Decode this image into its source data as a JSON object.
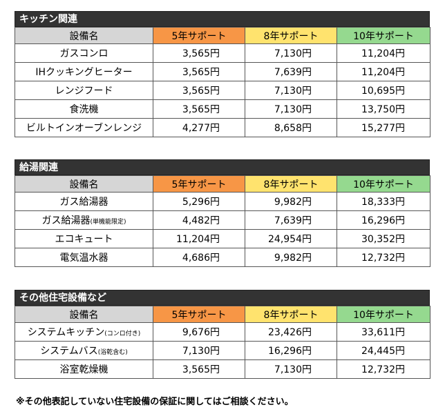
{
  "headers": {
    "name": "設備名",
    "y5": "5年サポート",
    "y8": "8年サポート",
    "y10": "10年サポート"
  },
  "colors": {
    "section_header": "#333333",
    "name_header": "#d6d6d6",
    "y5_header": "#f79646",
    "y8_header": "#ffe36e",
    "y10_header": "#95d98f"
  },
  "sections": [
    {
      "title": "キッチン関連",
      "rows": [
        {
          "name": "ガスコンロ",
          "note": "",
          "y5": "3,565円",
          "y8": "7,130円",
          "y10": "11,204円"
        },
        {
          "name": "IHクッキングヒーター",
          "note": "",
          "y5": "3,565円",
          "y8": "7,639円",
          "y10": "11,204円"
        },
        {
          "name": "レンジフード",
          "note": "",
          "y5": "3,565円",
          "y8": "7,130円",
          "y10": "10,695円"
        },
        {
          "name": "食洗機",
          "note": "",
          "y5": "3,565円",
          "y8": "7,130円",
          "y10": "13,750円"
        },
        {
          "name": "ビルトインオーブンレンジ",
          "note": "",
          "y5": "4,277円",
          "y8": "8,658円",
          "y10": "15,277円"
        }
      ]
    },
    {
      "title": "給湯関連",
      "rows": [
        {
          "name": "ガス給湯器",
          "note": "",
          "y5": "5,296円",
          "y8": "9,982円",
          "y10": "18,333円"
        },
        {
          "name": "ガス給湯器",
          "note": "(単機能限定)",
          "y5": "4,482円",
          "y8": "7,639円",
          "y10": "16,296円"
        },
        {
          "name": "エコキュート",
          "note": "",
          "y5": "11,204円",
          "y8": "24,954円",
          "y10": "30,352円"
        },
        {
          "name": "電気温水器",
          "note": "",
          "y5": "4,686円",
          "y8": "9,982円",
          "y10": "12,732円"
        }
      ]
    },
    {
      "title": "その他住宅設備など",
      "rows": [
        {
          "name": "システムキッチン",
          "note": "(コンロ付き)",
          "y5": "9,676円",
          "y8": "23,426円",
          "y10": "33,611円"
        },
        {
          "name": "システムバス",
          "note": "(浴乾含む)",
          "y5": "7,130円",
          "y8": "16,296円",
          "y10": "24,445円"
        },
        {
          "name": "浴室乾燥機",
          "note": "",
          "y5": "3,565円",
          "y8": "7,130円",
          "y10": "12,732円"
        }
      ]
    }
  ],
  "footer": "※その他表記していない住宅設備の保証に関してはご相談ください。"
}
